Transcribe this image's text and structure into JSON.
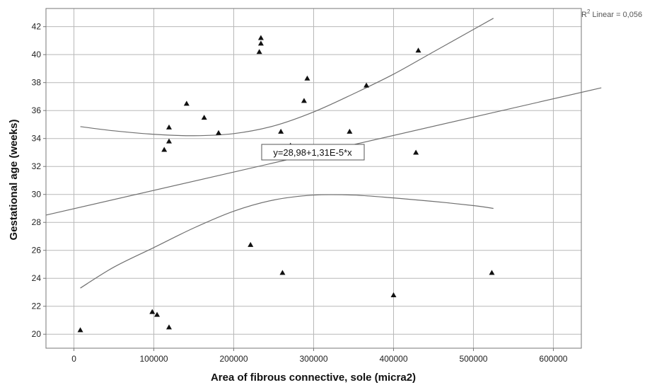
{
  "chart_data": {
    "type": "scatter",
    "xlabel": "Area of fibrous connective, sole (micra2)",
    "ylabel": "Gestational age (weeks)",
    "xlim": [
      -35000,
      635000
    ],
    "ylim": [
      19,
      43.3
    ],
    "x_ticks": [
      0,
      100000,
      200000,
      300000,
      400000,
      500000,
      600000
    ],
    "y_ticks": [
      20,
      22,
      24,
      26,
      28,
      30,
      32,
      34,
      36,
      38,
      40,
      42
    ],
    "grid": true,
    "r2_label": {
      "prefix": "R",
      "sup": "2",
      "suffix": " Linear = 0,056"
    },
    "equation_label": "y=28,98+1,31E-5*x",
    "fit_line": {
      "intercept": 28.98,
      "slope": 1.31e-05
    },
    "ci_upper": [
      [
        8000,
        34.85
      ],
      [
        50000,
        34.55
      ],
      [
        100000,
        34.3
      ],
      [
        150000,
        34.2
      ],
      [
        200000,
        34.35
      ],
      [
        250000,
        34.9
      ],
      [
        300000,
        35.9
      ],
      [
        350000,
        37.2
      ],
      [
        400000,
        38.6
      ],
      [
        450000,
        40.2
      ],
      [
        500000,
        41.8
      ],
      [
        525000,
        42.6
      ]
    ],
    "ci_lower": [
      [
        8000,
        23.3
      ],
      [
        50000,
        24.8
      ],
      [
        100000,
        26.2
      ],
      [
        150000,
        27.6
      ],
      [
        200000,
        28.8
      ],
      [
        250000,
        29.6
      ],
      [
        300000,
        29.95
      ],
      [
        350000,
        29.95
      ],
      [
        400000,
        29.75
      ],
      [
        450000,
        29.5
      ],
      [
        500000,
        29.2
      ],
      [
        525000,
        29.0
      ]
    ],
    "points": [
      [
        8000,
        20.3
      ],
      [
        98000,
        21.6
      ],
      [
        104000,
        21.4
      ],
      [
        119000,
        20.5
      ],
      [
        113000,
        33.2
      ],
      [
        119000,
        33.8
      ],
      [
        119000,
        34.8
      ],
      [
        141000,
        36.5
      ],
      [
        163000,
        35.5
      ],
      [
        181000,
        34.4
      ],
      [
        221000,
        26.4
      ],
      [
        232000,
        40.2
      ],
      [
        234000,
        40.8
      ],
      [
        234000,
        41.2
      ],
      [
        248000,
        33.4
      ],
      [
        259000,
        34.5
      ],
      [
        261000,
        24.4
      ],
      [
        271000,
        33.5
      ],
      [
        288000,
        36.7
      ],
      [
        292000,
        38.3
      ],
      [
        345000,
        34.5
      ],
      [
        366000,
        37.8
      ],
      [
        400000,
        22.8
      ],
      [
        428000,
        33.0
      ],
      [
        431000,
        40.3
      ],
      [
        523000,
        24.4
      ]
    ]
  }
}
